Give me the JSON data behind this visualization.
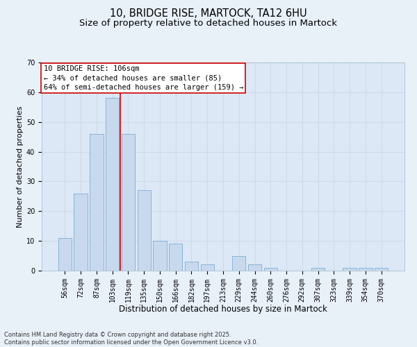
{
  "title": "10, BRIDGE RISE, MARTOCK, TA12 6HU",
  "subtitle": "Size of property relative to detached houses in Martock",
  "xlabel": "Distribution of detached houses by size in Martock",
  "ylabel": "Number of detached properties",
  "categories": [
    "56sqm",
    "72sqm",
    "87sqm",
    "103sqm",
    "119sqm",
    "135sqm",
    "150sqm",
    "166sqm",
    "182sqm",
    "197sqm",
    "213sqm",
    "229sqm",
    "244sqm",
    "260sqm",
    "276sqm",
    "292sqm",
    "307sqm",
    "323sqm",
    "339sqm",
    "354sqm",
    "370sqm"
  ],
  "values": [
    11,
    26,
    46,
    58,
    46,
    27,
    10,
    9,
    3,
    2,
    0,
    5,
    2,
    1,
    0,
    0,
    1,
    0,
    1,
    1,
    1
  ],
  "bar_color": "#c8d9ee",
  "bar_edge_color": "#7aadd4",
  "grid_color": "#ccdaeb",
  "background_color": "#e8f0f8",
  "plot_background": "#dce8f5",
  "vline_x": 3.5,
  "vline_color": "#cc0000",
  "annotation_text": "10 BRIDGE RISE: 106sqm\n← 34% of detached houses are smaller (85)\n64% of semi-detached houses are larger (159) →",
  "annotation_box_color": "#ffffff",
  "annotation_box_edge": "#cc0000",
  "ylim": [
    0,
    70
  ],
  "yticks": [
    0,
    10,
    20,
    30,
    40,
    50,
    60,
    70
  ],
  "footnote": "Contains HM Land Registry data © Crown copyright and database right 2025.\nContains public sector information licensed under the Open Government Licence v3.0.",
  "title_fontsize": 10.5,
  "subtitle_fontsize": 9.5,
  "xlabel_fontsize": 8.5,
  "ylabel_fontsize": 8,
  "tick_fontsize": 7,
  "annotation_fontsize": 7.5,
  "footnote_fontsize": 6
}
